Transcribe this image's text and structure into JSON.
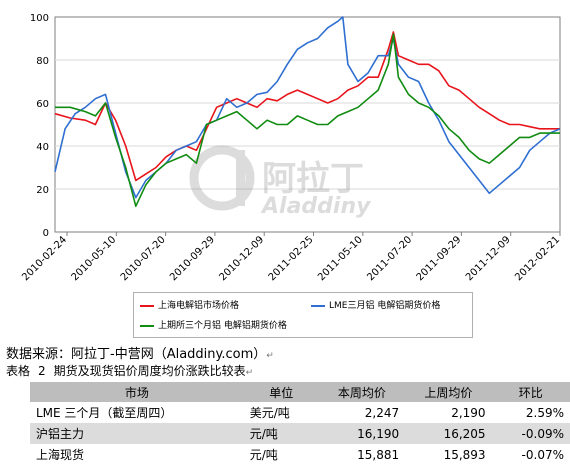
{
  "chart_data": {
    "type": "line",
    "ylim": [
      0,
      100
    ],
    "yticks": [
      0,
      20,
      40,
      60,
      80,
      100
    ],
    "x_tick_labels": [
      "2010-02-24",
      "2010-05-10",
      "2010-07-20",
      "2010-09-29",
      "2010-12-09",
      "2011-02-25",
      "2011-05-10",
      "2011-07-20",
      "2011-09-29",
      "2011-12-09",
      "2012-02-21"
    ],
    "x_range": [
      0,
      100
    ],
    "watermark": "阿拉丁 Aladdiny",
    "legend_placement": "bottom",
    "series": [
      {
        "name": "上海电解铝市场价格",
        "color": "#e8141b",
        "x": [
          0,
          3,
          6,
          8,
          10,
          12,
          14,
          16,
          18,
          20,
          22,
          24,
          26,
          28,
          30,
          32,
          34,
          36,
          38,
          40,
          42,
          44,
          46,
          48,
          50,
          52,
          54,
          56,
          58,
          60,
          62,
          64,
          66,
          67,
          68,
          70,
          72,
          74,
          76,
          78,
          80,
          82,
          84,
          86,
          88,
          90,
          92,
          94,
          96,
          98,
          100
        ],
        "y": [
          55,
          53,
          52,
          50,
          60,
          52,
          40,
          24,
          27,
          30,
          35,
          38,
          40,
          38,
          48,
          58,
          60,
          62,
          60,
          58,
          62,
          61,
          64,
          66,
          64,
          62,
          60,
          62,
          66,
          68,
          72,
          72,
          85,
          93,
          82,
          80,
          78,
          78,
          75,
          68,
          66,
          62,
          58,
          55,
          52,
          50,
          50,
          49,
          48,
          48,
          48
        ]
      },
      {
        "name": "LME三月铝 电解铝期货价格",
        "color": "#2f6fd1",
        "x": [
          0,
          2,
          4,
          6,
          8,
          10,
          12,
          14,
          16,
          18,
          20,
          22,
          24,
          26,
          28,
          30,
          32,
          34,
          36,
          38,
          40,
          42,
          44,
          46,
          48,
          50,
          52,
          54,
          56,
          57,
          58,
          60,
          62,
          64,
          66,
          67,
          68,
          70,
          72,
          74,
          76,
          78,
          80,
          82,
          84,
          86,
          88,
          90,
          92,
          94,
          96,
          98,
          100
        ],
        "y": [
          28,
          48,
          55,
          58,
          62,
          64,
          46,
          28,
          16,
          24,
          28,
          32,
          38,
          40,
          42,
          50,
          52,
          62,
          58,
          60,
          64,
          65,
          70,
          78,
          85,
          88,
          90,
          95,
          98,
          100,
          78,
          70,
          74,
          82,
          82,
          90,
          78,
          72,
          70,
          60,
          52,
          42,
          36,
          30,
          24,
          18,
          22,
          26,
          30,
          38,
          42,
          46,
          48
        ]
      },
      {
        "name": "上期所三个月铝 电解铝期货价格",
        "color": "#118c11",
        "x": [
          0,
          3,
          6,
          8,
          10,
          12,
          14,
          16,
          18,
          20,
          22,
          24,
          26,
          28,
          30,
          32,
          34,
          36,
          38,
          40,
          42,
          44,
          46,
          48,
          50,
          52,
          54,
          56,
          58,
          60,
          62,
          64,
          66,
          67,
          68,
          70,
          72,
          74,
          76,
          78,
          80,
          82,
          84,
          86,
          88,
          90,
          92,
          94,
          96,
          98,
          100
        ],
        "y": [
          58,
          58,
          56,
          54,
          60,
          44,
          30,
          12,
          22,
          28,
          32,
          34,
          36,
          32,
          50,
          52,
          54,
          56,
          52,
          48,
          52,
          50,
          50,
          54,
          52,
          50,
          50,
          54,
          56,
          58,
          62,
          66,
          78,
          92,
          72,
          64,
          60,
          58,
          54,
          48,
          44,
          38,
          34,
          32,
          36,
          40,
          44,
          44,
          46,
          46,
          46
        ]
      }
    ]
  },
  "source_text": "数据来源：阿拉丁-中营网（Aladdiny.com）",
  "caption": {
    "label": "表格",
    "number": "2",
    "title": "期货及现货铝价周度均价涨跌比较表"
  },
  "paragraph_mark": "↵",
  "table": {
    "headers": [
      "市场",
      "单位",
      "本周均价",
      "上周均价",
      "环比"
    ],
    "rows": [
      [
        "LME 三个月（截至周四）",
        "美元/吨",
        "2,247",
        "2,190",
        "2.59%"
      ],
      [
        "沪铝主力",
        "元/吨",
        "16,190",
        "16,205",
        "-0.09%"
      ],
      [
        "上海现货",
        "元/吨",
        "15,881",
        "15,893",
        "-0.07%"
      ]
    ]
  }
}
